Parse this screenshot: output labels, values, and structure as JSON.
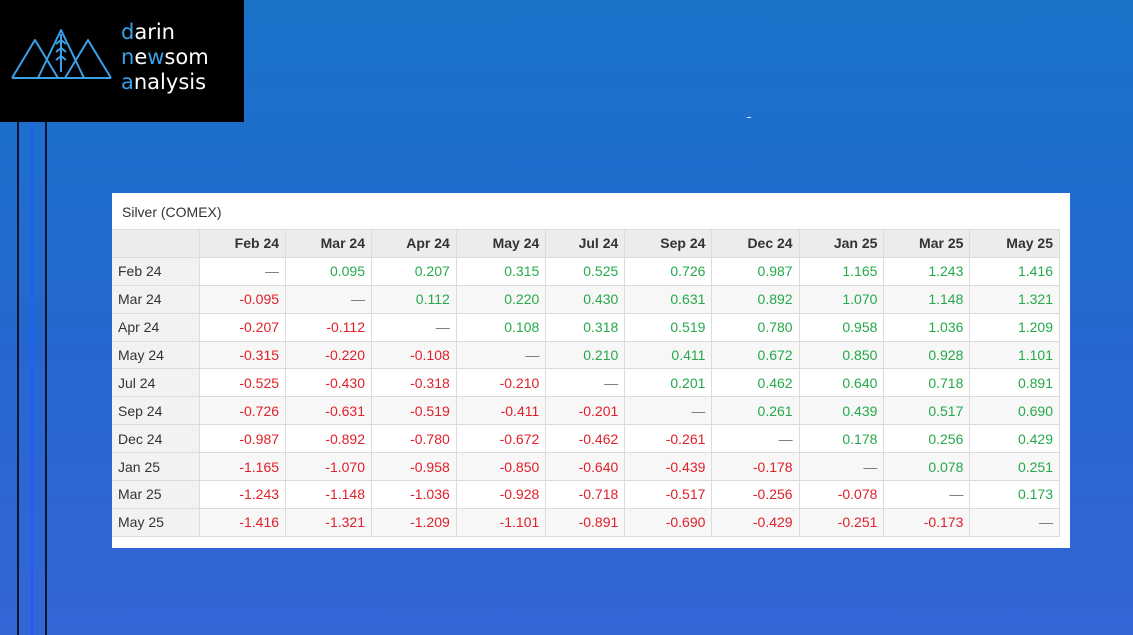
{
  "logo": {
    "line1": {
      "accent": "d",
      "rest": "arin"
    },
    "line2": {
      "accent_a": "n",
      "mid": "e",
      "accent_b": "w",
      "rest": "som"
    },
    "line3": {
      "accent": "a",
      "rest": "nalysis"
    },
    "icon": "mountain-wheat-icon",
    "accent_color": "#3aa0e8"
  },
  "table": {
    "title": "Silver (COMEX)",
    "columns": [
      "Feb 24",
      "Mar 24",
      "Apr 24",
      "May 24",
      "Jul 24",
      "Sep 24",
      "Dec 24",
      "Jan 25",
      "Mar 25",
      "May 25"
    ],
    "rows": [
      {
        "label": "Feb 24",
        "values": [
          "—",
          "0.095",
          "0.207",
          "0.315",
          "0.525",
          "0.726",
          "0.987",
          "1.165",
          "1.243",
          "1.416"
        ]
      },
      {
        "label": "Mar 24",
        "values": [
          "-0.095",
          "—",
          "0.112",
          "0.220",
          "0.430",
          "0.631",
          "0.892",
          "1.070",
          "1.148",
          "1.321"
        ]
      },
      {
        "label": "Apr 24",
        "values": [
          "-0.207",
          "-0.112",
          "—",
          "0.108",
          "0.318",
          "0.519",
          "0.780",
          "0.958",
          "1.036",
          "1.209"
        ]
      },
      {
        "label": "May 24",
        "values": [
          "-0.315",
          "-0.220",
          "-0.108",
          "—",
          "0.210",
          "0.411",
          "0.672",
          "0.850",
          "0.928",
          "1.101"
        ]
      },
      {
        "label": "Jul 24",
        "values": [
          "-0.525",
          "-0.430",
          "-0.318",
          "-0.210",
          "—",
          "0.201",
          "0.462",
          "0.640",
          "0.718",
          "0.891"
        ]
      },
      {
        "label": "Sep 24",
        "values": [
          "-0.726",
          "-0.631",
          "-0.519",
          "-0.411",
          "-0.201",
          "—",
          "0.261",
          "0.439",
          "0.517",
          "0.690"
        ]
      },
      {
        "label": "Dec 24",
        "values": [
          "-0.987",
          "-0.892",
          "-0.780",
          "-0.672",
          "-0.462",
          "-0.261",
          "—",
          "0.178",
          "0.256",
          "0.429"
        ]
      },
      {
        "label": "Jan 25",
        "values": [
          "-1.165",
          "-1.070",
          "-0.958",
          "-0.850",
          "-0.640",
          "-0.439",
          "-0.178",
          "—",
          "0.078",
          "0.251"
        ]
      },
      {
        "label": "Mar 25",
        "values": [
          "-1.243",
          "-1.148",
          "-1.036",
          "-0.928",
          "-0.718",
          "-0.517",
          "-0.256",
          "-0.078",
          "—",
          "0.173"
        ]
      },
      {
        "label": "May 25",
        "values": [
          "-1.416",
          "-1.321",
          "-1.209",
          "-1.101",
          "-0.891",
          "-0.690",
          "-0.429",
          "-0.251",
          "-0.173",
          "—"
        ]
      }
    ],
    "colors": {
      "positive": "#25a94a",
      "negative": "#e0202a",
      "neutral": "#777777"
    }
  }
}
